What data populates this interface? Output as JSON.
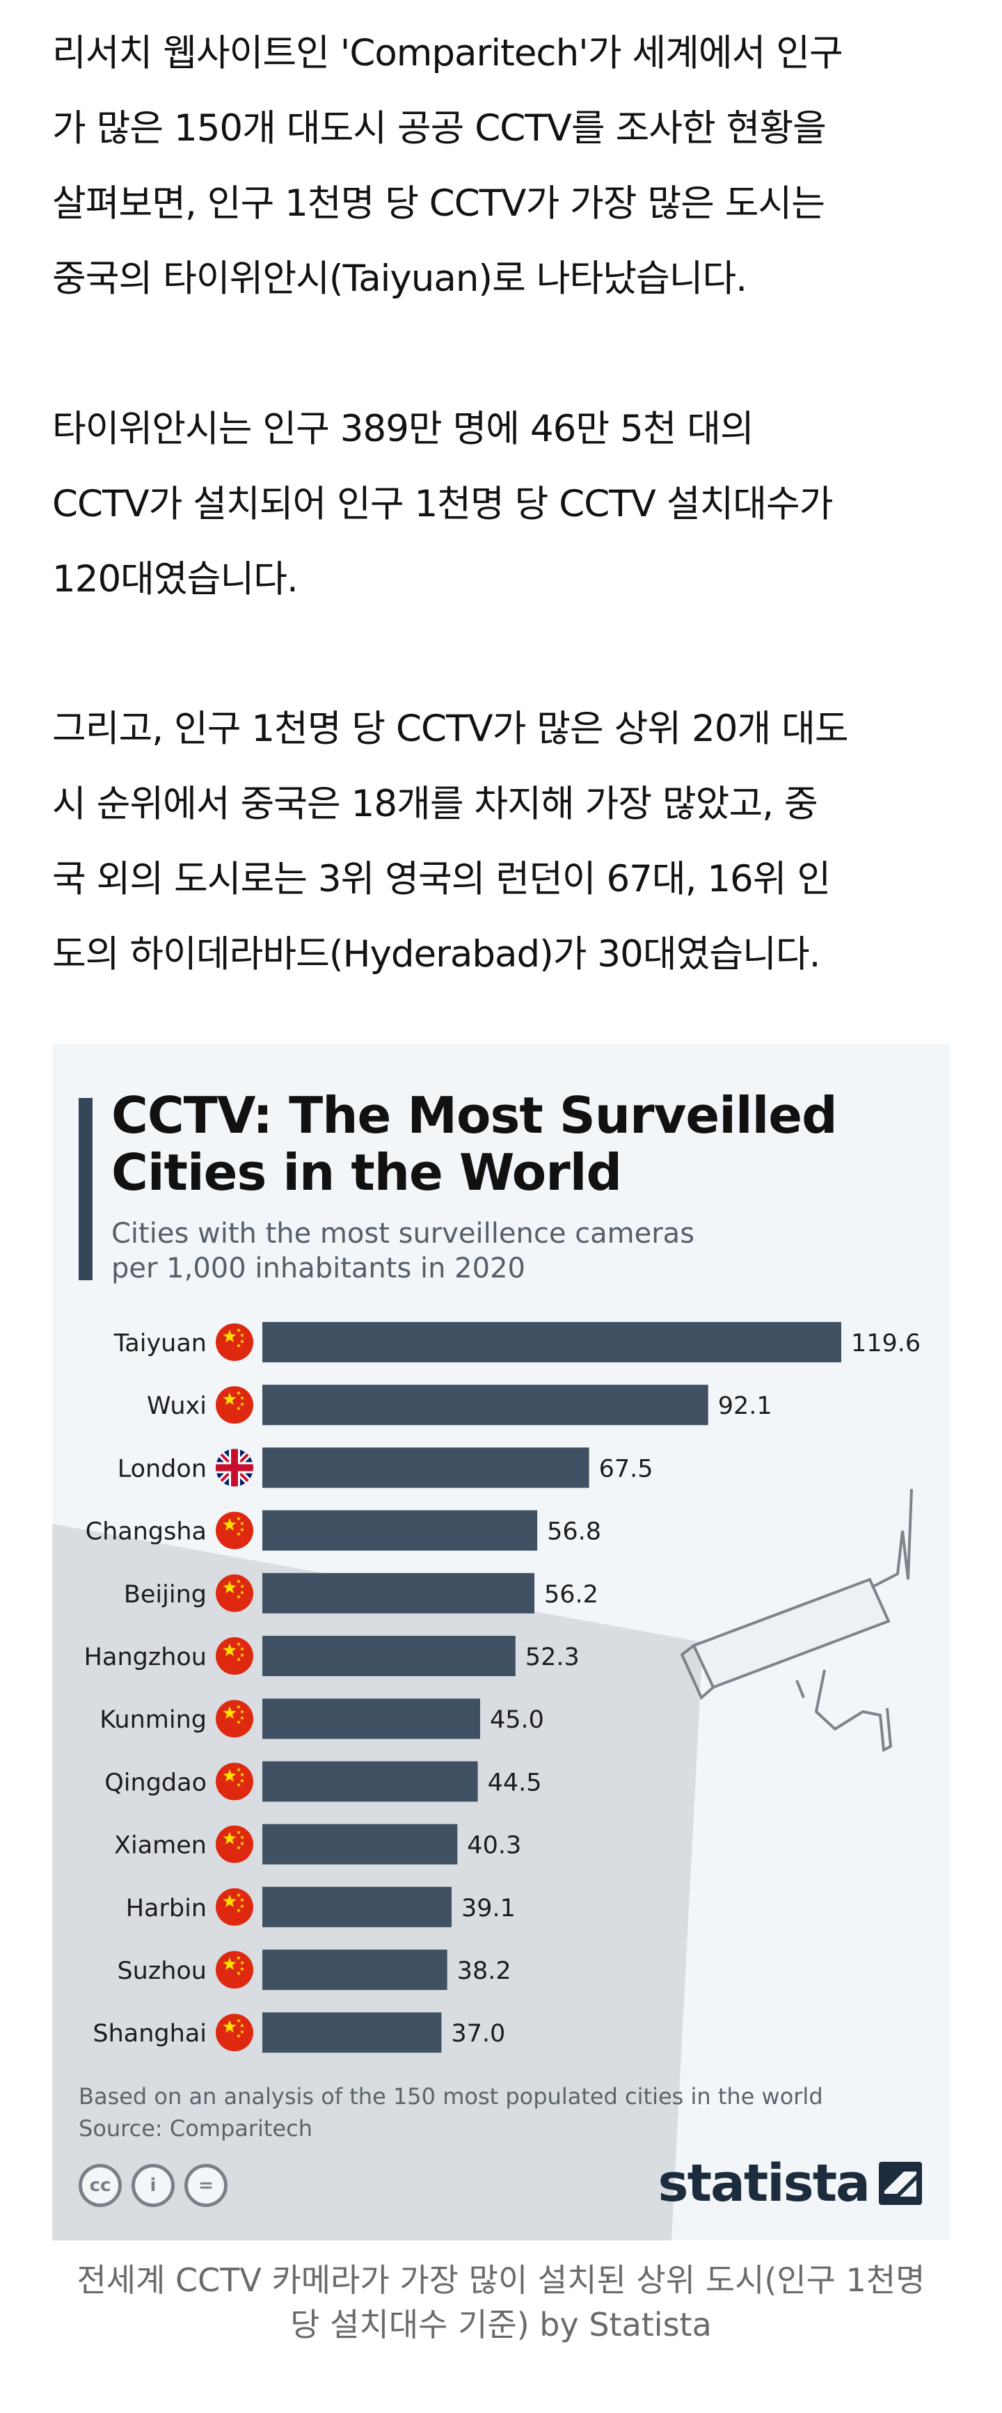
{
  "article": {
    "paragraphs": [
      {
        "lines": [
          "리서치 웹사이트인 'Comparitech'가 세계에서 인구",
          "가 많은 150개 대도시 공공 CCTV를 조사한 현황을",
          "살펴보면, 인구 1천명 당 CCTV가 가장 많은 도시는",
          "중국의 타이위안시(Taiyuan)로 나타났습니다."
        ]
      },
      {
        "lines": [
          "타이위안시는 인구 389만 명에 46만 5천 대의",
          "CCTV가 설치되어 인구 1천명 당 CCTV 설치대수가",
          "120대였습니다."
        ]
      },
      {
        "lines": [
          "그리고, 인구 1천명 당 CCTV가 많은 상위 20개 대도",
          "시 순위에서 중국은 18개를 차지해 가장 많았고, 중",
          "국 외의 도시로는 3위 영국의 런던이 67대, 16위 인",
          "도의 하이데라바드(Hyderabad)가 30대였습니다."
        ]
      }
    ]
  },
  "figure": {
    "title_line1": "CCTV: The Most Surveilled",
    "title_line2": "Cities in the World",
    "subtitle_line1": "Cities with the most surveillence cameras",
    "subtitle_line2": "per 1,000 inhabitants in 2020",
    "note_line1": "Based on an analysis of the 150 most populated cities in the world",
    "note_line2": "Source: Comparitech",
    "cc_icons": [
      "cc",
      "i",
      "="
    ],
    "brand": "statista"
  },
  "chart_data": {
    "type": "bar",
    "orientation": "horizontal",
    "title": "CCTV: The Most Surveilled Cities in the World",
    "subtitle": "Cities with the most surveillence cameras per 1,000 inhabitants in 2020",
    "categories": [
      "Taiyuan",
      "Wuxi",
      "London",
      "Changsha",
      "Beijing",
      "Hangzhou",
      "Kunming",
      "Qingdao",
      "Xiamen",
      "Harbin",
      "Suzhou",
      "Shanghai"
    ],
    "values": [
      119.6,
      92.1,
      67.5,
      56.8,
      56.2,
      52.3,
      45.0,
      44.5,
      40.3,
      39.1,
      38.2,
      37.0
    ],
    "value_labels": [
      "119.6",
      "92.1",
      "67.5",
      "56.8",
      "56.2",
      "52.3",
      "45.0",
      "44.5",
      "40.3",
      "39.1",
      "38.2",
      "37.0"
    ],
    "flags": [
      "china",
      "china",
      "uk",
      "china",
      "china",
      "china",
      "china",
      "china",
      "china",
      "china",
      "china",
      "china"
    ],
    "bar_color": "#3f5163",
    "xlim": [
      0,
      119.6
    ],
    "grid": false,
    "legend": "none"
  },
  "caption": {
    "lines": [
      "전세계 CCTV 카메라가 가장 많이 설치된 상위 도시(인구 1천명",
      "당 설치대수 기준) by Statista"
    ]
  },
  "colors": {
    "figure_background": "#f3f6f9",
    "accent": "#33475b",
    "bar": "#3f5163",
    "china_flag": "#de2910",
    "china_star": "#ffde00"
  }
}
